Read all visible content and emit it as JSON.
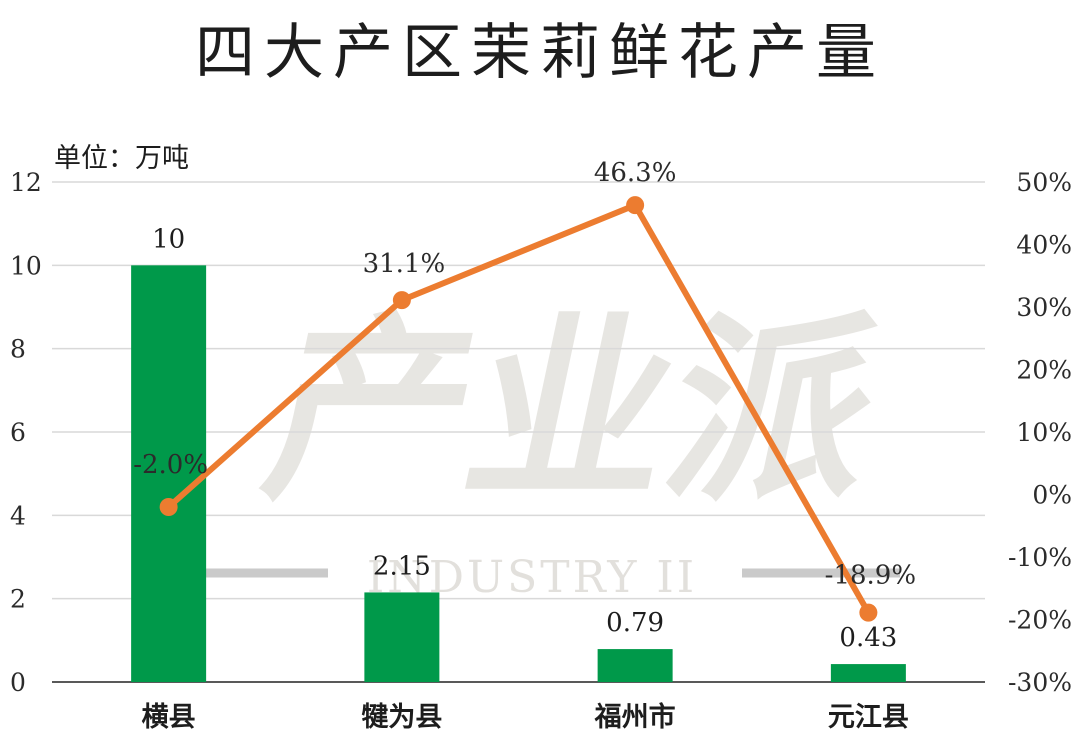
{
  "title": "四大产区茉莉鲜花产量",
  "unit_label": "单位：万吨",
  "watermark": {
    "main": "产业派",
    "sub": "INDUSTRY II"
  },
  "colors": {
    "bar": "#00994a",
    "line": "#ec7c30",
    "grid": "#d9d9d9",
    "axis": "#595959"
  },
  "chart_data": {
    "type": "bar",
    "categories": [
      "横县",
      "犍为县",
      "福州市",
      "元江县"
    ],
    "series": [
      {
        "values": [
          10,
          2.15,
          0.79,
          0.43
        ],
        "labels": [
          "10",
          "2.15",
          "0.79",
          "0.43"
        ]
      },
      {
        "values": [
          -2.0,
          31.1,
          46.3,
          -18.9
        ],
        "labels": [
          "-2.0%",
          "31.1%",
          "46.3%",
          "-18.9%"
        ]
      }
    ],
    "y_left": {
      "min": 0,
      "max": 12,
      "ticks": [
        "0",
        "2",
        "4",
        "6",
        "8",
        "10",
        "12"
      ]
    },
    "y_right": {
      "min": -30,
      "max": 50,
      "ticks": [
        "-30%",
        "-20%",
        "-10%",
        "0%",
        "10%",
        "20%",
        "30%",
        "40%",
        "50%"
      ]
    },
    "grid": true,
    "legend": "none"
  }
}
